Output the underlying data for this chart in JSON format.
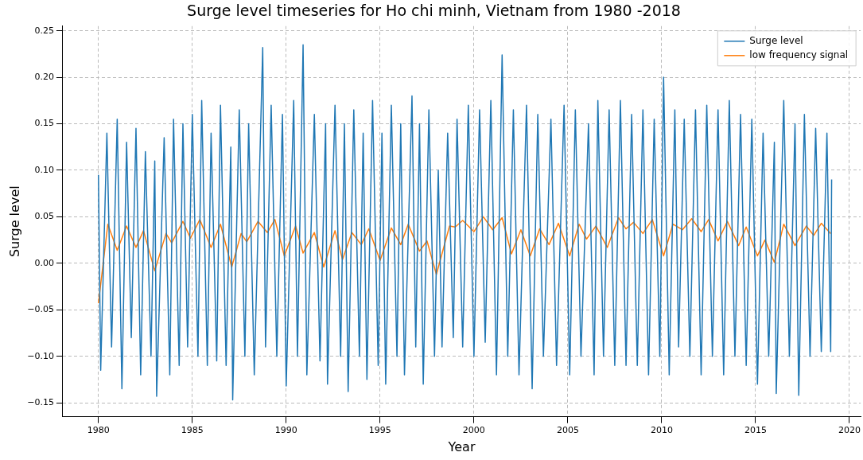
{
  "chart_data": {
    "type": "line",
    "title": "Surge level timeseries for Ho chi minh, Vietnam from 1980 -2018",
    "xlabel": "Year",
    "ylabel": "Surge level",
    "xlim": [
      1978.1,
      2020.6
    ],
    "xticks": [
      1980,
      1985,
      1990,
      1995,
      2000,
      2005,
      2010,
      2015,
      2020
    ],
    "ylim": [
      -0.165,
      0.255
    ],
    "yticks": [
      {
        "value": -0.15,
        "label": "−0.15"
      },
      {
        "value": -0.1,
        "label": "−0.10"
      },
      {
        "value": -0.05,
        "label": "−0.05"
      },
      {
        "value": 0,
        "label": "0.00"
      },
      {
        "value": 0.05,
        "label": "0.05"
      },
      {
        "value": 0.1,
        "label": "0.10"
      },
      {
        "value": 0.15,
        "label": "0.15"
      },
      {
        "value": 0.2,
        "label": "0.20"
      },
      {
        "value": 0.25,
        "label": "0.25"
      }
    ],
    "grid": true,
    "legend": "top right",
    "marker": "none",
    "series": [
      {
        "name": "Surge level",
        "color": "#1f77b4",
        "x": [
          1980.0,
          1980.12,
          1980.45,
          1980.7,
          1981.0,
          1981.25,
          1981.5,
          1981.75,
          1982.0,
          1982.25,
          1982.5,
          1982.8,
          1983.0,
          1983.1,
          1983.5,
          1983.8,
          1984.0,
          1984.3,
          1984.5,
          1984.75,
          1985.0,
          1985.3,
          1985.5,
          1985.8,
          1986.0,
          1986.3,
          1986.5,
          1986.8,
          1987.05,
          1987.15,
          1987.5,
          1987.8,
          1988.0,
          1988.3,
          1988.75,
          1988.9,
          1989.2,
          1989.5,
          1989.8,
          1990.0,
          1990.4,
          1990.6,
          1990.9,
          1991.1,
          1991.5,
          1991.8,
          1992.1,
          1992.2,
          1992.6,
          1992.9,
          1993.1,
          1993.3,
          1993.6,
          1993.9,
          1994.1,
          1994.3,
          1994.6,
          1994.9,
          1995.1,
          1995.3,
          1995.6,
          1995.9,
          1996.1,
          1996.3,
          1996.7,
          1996.9,
          1997.1,
          1997.3,
          1997.6,
          1997.9,
          1998.1,
          1998.3,
          1998.6,
          1998.9,
          1999.1,
          1999.4,
          1999.7,
          2000.0,
          2000.3,
          2000.6,
          2000.9,
          2001.2,
          2001.5,
          2001.8,
          2002.1,
          2002.4,
          2002.8,
          2003.1,
          2003.4,
          2003.7,
          2004.1,
          2004.4,
          2004.8,
          2005.1,
          2005.4,
          2005.7,
          2006.1,
          2006.4,
          2006.6,
          2006.9,
          2007.2,
          2007.5,
          2007.8,
          2008.1,
          2008.4,
          2008.7,
          2009.0,
          2009.3,
          2009.6,
          2009.9,
          2010.1,
          2010.4,
          2010.7,
          2010.9,
          2011.2,
          2011.5,
          2011.8,
          2012.1,
          2012.4,
          2012.7,
          2013.0,
          2013.3,
          2013.6,
          2013.9,
          2014.2,
          2014.5,
          2014.8,
          2015.1,
          2015.4,
          2015.7,
          2016.0,
          2016.1,
          2016.5,
          2016.8,
          2017.1,
          2017.3,
          2017.6,
          2017.9,
          2018.2,
          2018.5,
          2018.8,
          2019.0,
          2019.05
        ],
        "values": [
          0.095,
          -0.115,
          0.14,
          -0.09,
          0.155,
          -0.135,
          0.13,
          -0.08,
          0.145,
          -0.12,
          0.12,
          -0.1,
          0.11,
          -0.143,
          0.135,
          -0.12,
          0.155,
          -0.11,
          0.15,
          -0.09,
          0.16,
          -0.1,
          0.175,
          -0.11,
          0.14,
          -0.105,
          0.17,
          -0.11,
          0.125,
          -0.147,
          0.165,
          -0.1,
          0.15,
          -0.12,
          0.232,
          -0.09,
          0.17,
          -0.1,
          0.16,
          -0.132,
          0.175,
          -0.1,
          0.235,
          -0.12,
          0.16,
          -0.105,
          0.15,
          -0.13,
          0.17,
          -0.1,
          0.15,
          -0.138,
          0.165,
          -0.1,
          0.14,
          -0.125,
          0.175,
          -0.11,
          0.14,
          -0.13,
          0.17,
          -0.1,
          0.15,
          -0.12,
          0.18,
          -0.09,
          0.15,
          -0.13,
          0.165,
          -0.1,
          0.1,
          -0.09,
          0.14,
          -0.08,
          0.155,
          -0.09,
          0.17,
          -0.1,
          0.165,
          -0.085,
          0.175,
          -0.12,
          0.224,
          -0.1,
          0.165,
          -0.12,
          0.17,
          -0.135,
          0.16,
          -0.1,
          0.155,
          -0.11,
          0.17,
          -0.12,
          0.165,
          -0.1,
          0.15,
          -0.12,
          0.175,
          -0.1,
          0.165,
          -0.11,
          0.175,
          -0.11,
          0.16,
          -0.11,
          0.165,
          -0.12,
          0.155,
          -0.1,
          0.2,
          -0.12,
          0.165,
          -0.09,
          0.155,
          -0.1,
          0.165,
          -0.12,
          0.17,
          -0.1,
          0.165,
          -0.12,
          0.175,
          -0.1,
          0.16,
          -0.11,
          0.155,
          -0.13,
          0.14,
          -0.1,
          0.13,
          -0.14,
          0.175,
          -0.1,
          0.15,
          -0.142,
          0.16,
          -0.1,
          0.145,
          -0.095,
          0.14,
          -0.095,
          0.09
        ]
      },
      {
        "name": "low frequency signal",
        "color": "#ff7f0e",
        "x": [
          1980.0,
          1980.5,
          1981.0,
          1981.5,
          1982.0,
          1982.4,
          1983.0,
          1983.6,
          1983.9,
          1984.5,
          1984.9,
          1985.4,
          1986.0,
          1986.5,
          1987.1,
          1987.6,
          1987.9,
          1988.5,
          1989.0,
          1989.4,
          1989.9,
          1990.5,
          1990.9,
          1991.5,
          1992.0,
          1992.6,
          1993.0,
          1993.5,
          1994.0,
          1994.4,
          1995.0,
          1995.6,
          1996.1,
          1996.5,
          1997.1,
          1997.5,
          1998.0,
          1998.7,
          1999.0,
          1999.4,
          2000.0,
          2000.5,
          2001.0,
          2001.5,
          2002.0,
          2002.5,
          2003.0,
          2003.5,
          2004.0,
          2004.5,
          2005.1,
          2005.6,
          2006.0,
          2006.5,
          2007.1,
          2007.7,
          2008.1,
          2008.5,
          2009.0,
          2009.5,
          2010.1,
          2010.6,
          2011.1,
          2011.6,
          2012.1,
          2012.5,
          2013.0,
          2013.5,
          2014.1,
          2014.5,
          2015.1,
          2015.5,
          2016.0,
          2016.5,
          2017.1,
          2017.7,
          2018.1,
          2018.5,
          2019.0
        ],
        "values": [
          -0.043,
          0.042,
          0.014,
          0.04,
          0.017,
          0.035,
          -0.008,
          0.032,
          0.022,
          0.045,
          0.027,
          0.047,
          0.017,
          0.042,
          -0.004,
          0.032,
          0.023,
          0.045,
          0.033,
          0.047,
          0.008,
          0.04,
          0.011,
          0.033,
          -0.004,
          0.035,
          0.004,
          0.033,
          0.02,
          0.037,
          0.003,
          0.038,
          0.02,
          0.042,
          0.013,
          0.024,
          -0.012,
          0.04,
          0.039,
          0.046,
          0.034,
          0.05,
          0.036,
          0.049,
          0.01,
          0.036,
          0.008,
          0.037,
          0.02,
          0.043,
          0.008,
          0.042,
          0.026,
          0.04,
          0.017,
          0.049,
          0.037,
          0.044,
          0.032,
          0.047,
          0.008,
          0.042,
          0.036,
          0.048,
          0.034,
          0.047,
          0.024,
          0.045,
          0.019,
          0.039,
          0.008,
          0.025,
          0.001,
          0.042,
          0.019,
          0.04,
          0.03,
          0.043,
          0.032
        ]
      }
    ]
  }
}
